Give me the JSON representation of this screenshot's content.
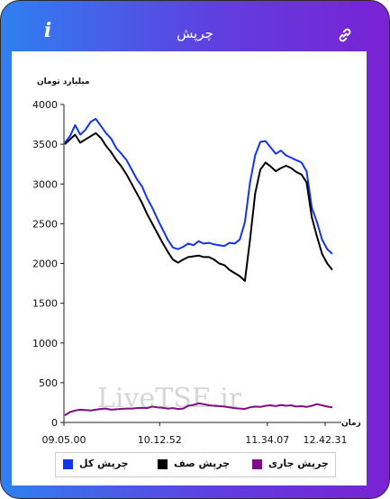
{
  "header": {
    "title": "چرپش",
    "info_icon": "info-icon",
    "link_icon": "link-icon"
  },
  "chart_data": {
    "type": "line",
    "ylabel": "میلیارد تومان",
    "xlabel": "زمان",
    "ylim": [
      0,
      4000
    ],
    "yticks": [
      0,
      500,
      1000,
      1500,
      2000,
      2500,
      3000,
      3500,
      4000
    ],
    "xticks": [
      "09.05.00",
      "10.12.52",
      "11.34.07",
      "12.42.31"
    ],
    "legend_position": "bottom",
    "watermark": "LiveTSE.ir",
    "series": [
      {
        "name": "چرپش کل",
        "color": "#1434e8",
        "values": [
          3520,
          3600,
          3740,
          3620,
          3680,
          3780,
          3820,
          3730,
          3640,
          3570,
          3450,
          3380,
          3300,
          3180,
          3060,
          2970,
          2820,
          2700,
          2560,
          2430,
          2300,
          2200,
          2180,
          2210,
          2250,
          2230,
          2280,
          2250,
          2260,
          2240,
          2230,
          2220,
          2260,
          2250,
          2300,
          2520,
          3020,
          3360,
          3530,
          3540,
          3460,
          3380,
          3420,
          3360,
          3330,
          3300,
          3270,
          3160,
          2700,
          2520,
          2300,
          2180,
          2120
        ]
      },
      {
        "name": "چرپش صف",
        "color": "#000000",
        "values": [
          3500,
          3560,
          3620,
          3520,
          3560,
          3600,
          3640,
          3580,
          3480,
          3400,
          3300,
          3220,
          3120,
          3000,
          2880,
          2760,
          2620,
          2500,
          2380,
          2260,
          2150,
          2050,
          2010,
          2050,
          2080,
          2090,
          2100,
          2080,
          2080,
          2050,
          2000,
          1980,
          1920,
          1880,
          1840,
          1780,
          2300,
          2880,
          3180,
          3270,
          3220,
          3160,
          3200,
          3230,
          3200,
          3150,
          3120,
          3020,
          2580,
          2340,
          2120,
          2000,
          1920
        ]
      },
      {
        "name": "چرپش جاری",
        "color": "#7d0f83",
        "values": [
          90,
          130,
          150,
          160,
          155,
          150,
          160,
          170,
          175,
          160,
          165,
          170,
          175,
          175,
          180,
          185,
          180,
          200,
          190,
          185,
          175,
          180,
          170,
          175,
          210,
          220,
          240,
          230,
          215,
          210,
          205,
          200,
          190,
          180,
          175,
          170,
          190,
          200,
          195,
          210,
          215,
          205,
          220,
          210,
          215,
          200,
          205,
          195,
          210,
          230,
          215,
          200,
          190
        ]
      }
    ]
  }
}
